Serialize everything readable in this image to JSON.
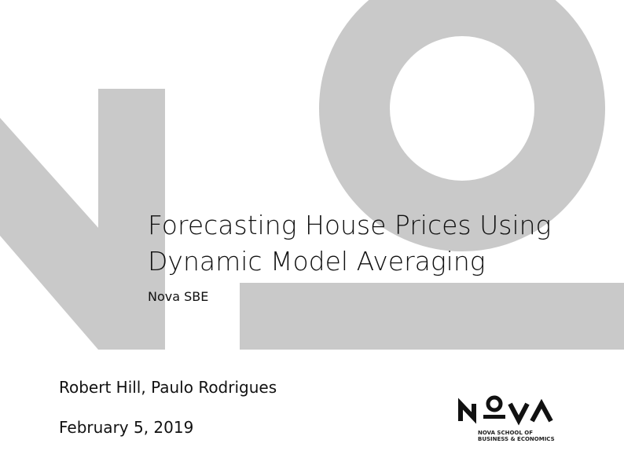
{
  "title_line1": "Forecasting House Prices Using",
  "title_line2": "Dynamic Model Averaging",
  "institute": "Nova SBE",
  "authors": "Robert Hill, Paulo Rodrigues",
  "date": "February 5, 2019",
  "logo": {
    "wordmark": "NOVA",
    "line1": "NOVA SCHOOL OF",
    "line2": "BUSINESS & ECONOMICS"
  },
  "colors": {
    "watermark": "#c9c9c9",
    "text": "#111111"
  }
}
